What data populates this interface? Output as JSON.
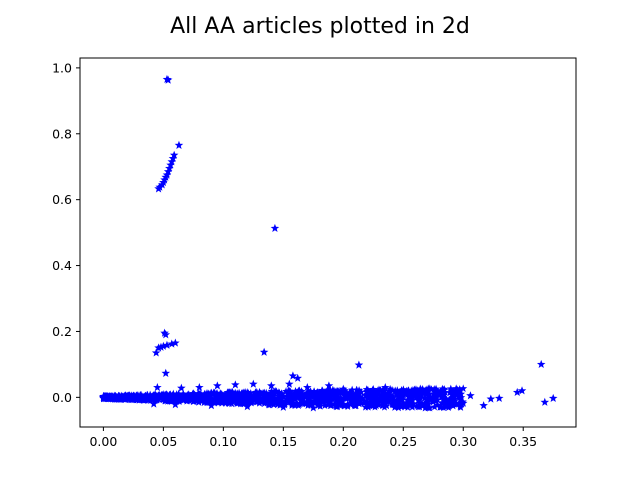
{
  "chart_data": {
    "type": "scatter",
    "title": "All AA articles plotted in 2d",
    "xlabel": "",
    "ylabel": "",
    "xlim": [
      -0.0195,
      0.394
    ],
    "ylim": [
      -0.09,
      1.03
    ],
    "xticks": [
      0.0,
      0.05,
      0.1,
      0.15,
      0.2,
      0.25,
      0.3,
      0.35
    ],
    "xtick_labels": [
      "0.00",
      "0.05",
      "0.10",
      "0.15",
      "0.20",
      "0.25",
      "0.30",
      "0.35"
    ],
    "yticks": [
      0.0,
      0.2,
      0.4,
      0.6,
      0.8,
      1.0
    ],
    "ytick_labels": [
      "0.0",
      "0.2",
      "0.4",
      "0.6",
      "0.8",
      "1.0"
    ],
    "grid": false,
    "legend": "none",
    "marker": "star",
    "color": "#0000ff",
    "points": [
      [
        0.053,
        0.965
      ],
      [
        0.054,
        0.963
      ],
      [
        0.063,
        0.765
      ],
      [
        0.059,
        0.735
      ],
      [
        0.058,
        0.725
      ],
      [
        0.057,
        0.715
      ],
      [
        0.056,
        0.705
      ],
      [
        0.055,
        0.695
      ],
      [
        0.054,
        0.685
      ],
      [
        0.053,
        0.675
      ],
      [
        0.052,
        0.668
      ],
      [
        0.051,
        0.66
      ],
      [
        0.05,
        0.652
      ],
      [
        0.049,
        0.645
      ],
      [
        0.047,
        0.638
      ],
      [
        0.046,
        0.633
      ],
      [
        0.143,
        0.513
      ],
      [
        0.051,
        0.195
      ],
      [
        0.052,
        0.19
      ],
      [
        0.06,
        0.165
      ],
      [
        0.057,
        0.162
      ],
      [
        0.053,
        0.158
      ],
      [
        0.05,
        0.155
      ],
      [
        0.048,
        0.152
      ],
      [
        0.046,
        0.15
      ],
      [
        0.044,
        0.135
      ],
      [
        0.134,
        0.137
      ],
      [
        0.213,
        0.098
      ],
      [
        0.365,
        0.1
      ],
      [
        0.052,
        0.073
      ],
      [
        0.158,
        0.065
      ],
      [
        0.162,
        0.058
      ],
      [
        0.375,
        -0.003
      ],
      [
        0.368,
        -0.015
      ],
      [
        0.349,
        0.02
      ],
      [
        0.345,
        0.015
      ],
      [
        0.33,
        -0.003
      ],
      [
        0.323,
        -0.005
      ],
      [
        0.317,
        -0.025
      ],
      [
        0.306,
        0.005
      ],
      [
        0.297,
        0.022
      ],
      [
        0.3,
        -0.018
      ],
      [
        0.289,
        -0.008
      ],
      [
        0.284,
        -0.01
      ],
      [
        0.277,
        0.01
      ],
      [
        0.27,
        -0.015
      ],
      [
        0.262,
        0.02
      ],
      [
        0.255,
        -0.02
      ],
      [
        0.247,
        0.005
      ],
      [
        0.24,
        -0.008
      ],
      [
        0.235,
        0.03
      ],
      [
        0.228,
        -0.01
      ],
      [
        0.22,
        0.015
      ],
      [
        0.2,
        0.025
      ],
      [
        0.188,
        0.035
      ],
      [
        0.17,
        0.03
      ],
      [
        0.155,
        0.04
      ],
      [
        0.14,
        0.035
      ],
      [
        0.125,
        0.04
      ],
      [
        0.11,
        0.038
      ],
      [
        0.095,
        0.035
      ],
      [
        0.08,
        0.03
      ],
      [
        0.065,
        0.028
      ],
      [
        0.045,
        0.03
      ],
      [
        0.042,
        -0.02
      ],
      [
        0.06,
        -0.022
      ],
      [
        0.09,
        -0.025
      ],
      [
        0.12,
        -0.028
      ],
      [
        0.15,
        -0.03
      ],
      [
        0.175,
        -0.032
      ],
      [
        0.195,
        -0.028
      ],
      [
        0.21,
        -0.025
      ],
      [
        0.0,
        0.0
      ],
      [
        0.002,
        -0.002
      ],
      [
        0.005,
        -0.003
      ],
      [
        0.008,
        -0.004
      ],
      [
        0.01,
        -0.002
      ],
      [
        0.013,
        -0.005
      ],
      [
        0.015,
        -0.003
      ],
      [
        0.018,
        -0.006
      ],
      [
        0.02,
        -0.004
      ],
      [
        0.023,
        -0.007
      ],
      [
        0.026,
        -0.005
      ],
      [
        0.03,
        -0.008
      ]
    ]
  }
}
